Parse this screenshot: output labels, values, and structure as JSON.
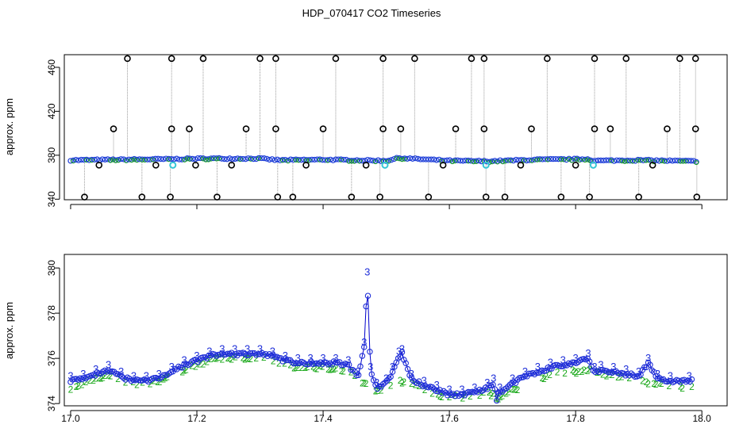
{
  "figure": {
    "title": "HDP_070417  CO2 Timeseries"
  },
  "chart_data": [
    {
      "type": "scatter",
      "ylabel": "approx. ppm",
      "xlabel": "",
      "xlim": [
        16.99,
        18.04
      ],
      "ylim": [
        339.5,
        471.5
      ],
      "xticks": [
        "17.0",
        "17.2",
        "17.4",
        "17.6",
        "17.8",
        "18.0"
      ],
      "yticks": [
        "340",
        "380",
        "420",
        "460"
      ],
      "baseline": {
        "x": [
          17.0,
          17.08,
          17.16,
          17.22,
          17.3,
          17.33,
          17.4,
          17.5,
          17.52,
          17.6,
          17.66,
          17.74,
          17.82,
          17.83,
          17.9,
          17.99
        ],
        "y": [
          375.5,
          376.0,
          376.5,
          377.0,
          377.0,
          375.5,
          376.0,
          375.0,
          377.5,
          375.0,
          374.5,
          376.0,
          376.5,
          375.0,
          375.5,
          374.5
        ]
      },
      "outliers_high": {
        "x": [
          17.09,
          17.16,
          17.21,
          17.3,
          17.325,
          17.42,
          17.495,
          17.545,
          17.635,
          17.655,
          17.755,
          17.83,
          17.88,
          17.965,
          17.99
        ],
        "y": [
          468,
          468,
          468,
          468,
          468,
          468,
          468,
          468,
          468,
          468,
          468,
          468,
          468,
          468,
          468
        ]
      },
      "outliers_mid": {
        "x": [
          17.068,
          17.16,
          17.188,
          17.278,
          17.325,
          17.4,
          17.495,
          17.523,
          17.61,
          17.655,
          17.73,
          17.83,
          17.855,
          17.945,
          17.99
        ],
        "y": [
          404,
          404,
          404,
          404,
          404,
          404,
          404,
          404,
          404,
          404,
          404,
          404,
          404,
          404,
          404
        ]
      },
      "outliers_low": {
        "x": [
          17.022,
          17.113,
          17.158,
          17.198,
          17.232,
          17.255,
          17.328,
          17.352,
          17.373,
          17.445,
          17.468,
          17.49,
          17.567,
          17.59,
          17.658,
          17.688,
          17.713,
          17.777,
          17.8,
          17.822,
          17.9,
          17.922,
          17.992,
          17.045,
          17.135
        ],
        "y": [
          342,
          342,
          342,
          371,
          342,
          371,
          342,
          342,
          371,
          342,
          371,
          342,
          342,
          371,
          342,
          342,
          371,
          342,
          371,
          342,
          342,
          371,
          342,
          371,
          371
        ]
      },
      "cyan_markers": {
        "x": [
          17.162,
          17.498,
          17.658,
          17.828
        ],
        "y": [
          371,
          371,
          371,
          371
        ]
      },
      "series_colors": {
        "outlier": "#000000",
        "baseline": "#1f3fd8",
        "gap_line": "#9a9a9a",
        "green": "#1aa81a",
        "cyan": "#35c6d6"
      }
    },
    {
      "type": "scatter",
      "ylabel": "approx. ppm",
      "xlabel": "",
      "xlim": [
        16.99,
        18.04
      ],
      "ylim": [
        373.9,
        380.6
      ],
      "xticks": [
        "17.0",
        "17.2",
        "17.4",
        "17.6",
        "17.8",
        "18.0"
      ],
      "yticks": [
        "374",
        "376",
        "378",
        "380"
      ],
      "series": [
        {
          "name": "3",
          "x": [
            17.0,
            17.02,
            17.04,
            17.06,
            17.08,
            17.1,
            17.12,
            17.14,
            17.16,
            17.18,
            17.2,
            17.22,
            17.24,
            17.26,
            17.28,
            17.3,
            17.32,
            17.34,
            17.36,
            17.38,
            17.4,
            17.42,
            17.44,
            17.455,
            17.465,
            17.47,
            17.475,
            17.485,
            17.5,
            17.51,
            17.52,
            17.525,
            17.54,
            17.56,
            17.58,
            17.6,
            17.62,
            17.64,
            17.66,
            17.67,
            17.675,
            17.68,
            17.7,
            17.72,
            17.74,
            17.76,
            17.78,
            17.8,
            17.82,
            17.83,
            17.84,
            17.86,
            17.88,
            17.9,
            17.915,
            17.93,
            17.95,
            17.98
          ],
          "values": [
            375.0,
            375.1,
            375.3,
            375.5,
            375.2,
            375.0,
            375.0,
            375.1,
            375.4,
            375.7,
            375.9,
            376.1,
            376.2,
            376.2,
            376.2,
            376.2,
            376.1,
            375.9,
            375.8,
            375.8,
            375.8,
            375.8,
            375.7,
            375.2,
            376.5,
            379.6,
            375.4,
            374.7,
            374.9,
            375.4,
            376.1,
            376.2,
            375.1,
            374.8,
            374.6,
            374.4,
            374.4,
            374.5,
            374.7,
            374.9,
            374.2,
            374.5,
            374.9,
            375.2,
            375.4,
            375.6,
            375.7,
            375.8,
            376.0,
            375.4,
            375.5,
            375.4,
            375.3,
            375.2,
            375.8,
            375.1,
            375.0,
            375.0
          ]
        },
        {
          "name": "2",
          "x": [
            17.0,
            17.02,
            17.04,
            17.06,
            17.08,
            17.1,
            17.12,
            17.14,
            17.16,
            17.18,
            17.2,
            17.22,
            17.24,
            17.26,
            17.28,
            17.3,
            17.32,
            17.34,
            17.36,
            17.38,
            17.4,
            17.42,
            17.44,
            17.46,
            17.48,
            17.5,
            17.52,
            17.54,
            17.56,
            17.58,
            17.6,
            17.62,
            17.64,
            17.66,
            17.68,
            17.7,
            17.72,
            17.74,
            17.76,
            17.78,
            17.8,
            17.82,
            17.84,
            17.86,
            17.88,
            17.9,
            17.92,
            17.94,
            17.96,
            17.98
          ],
          "values": [
            374.6,
            374.9,
            375.1,
            375.3,
            375.0,
            374.9,
            374.9,
            375.0,
            375.3,
            375.5,
            375.7,
            375.9,
            376.0,
            376.0,
            376.0,
            376.0,
            375.9,
            375.7,
            375.6,
            375.6,
            375.6,
            375.5,
            375.4,
            375.0,
            374.6,
            374.7,
            375.0,
            374.9,
            374.6,
            374.4,
            374.3,
            374.3,
            374.3,
            374.5,
            374.2,
            374.6,
            374.8,
            375.0,
            375.3,
            375.4,
            375.4,
            375.5,
            375.3,
            375.2,
            375.1,
            375.0,
            374.9,
            374.8,
            374.7,
            374.7
          ]
        }
      ],
      "series_colors": {
        "3": "#1f2fd8",
        "2": "#1aa81a",
        "line": "#0000cc"
      }
    }
  ]
}
